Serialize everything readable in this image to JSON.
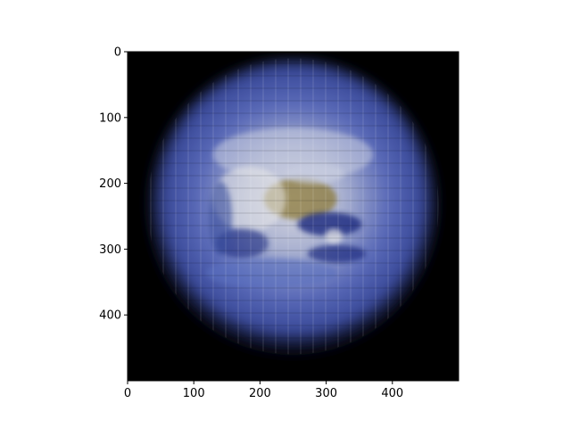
{
  "chart_data": {
    "type": "heatmap",
    "title": "",
    "xlabel": "",
    "ylabel": "",
    "image": {
      "description_name": "reconstructed-earth-globe",
      "width": 500,
      "height": 500,
      "background_color": "#000000",
      "globe_colors": [
        "#3a4f9e",
        "#5a6fbf",
        "#c8cde0",
        "#8c7a3a",
        "#1a2a80",
        "#e8e8e8"
      ]
    },
    "xlim": [
      0,
      500
    ],
    "ylim": [
      500,
      0
    ],
    "x_ticks": [
      0,
      100,
      200,
      300,
      400
    ],
    "y_ticks": [
      0,
      100,
      200,
      300,
      400
    ],
    "x_tick_labels": [
      "0",
      "100",
      "200",
      "300",
      "400"
    ],
    "y_tick_labels": [
      "0",
      "100",
      "200",
      "300",
      "400"
    ]
  }
}
